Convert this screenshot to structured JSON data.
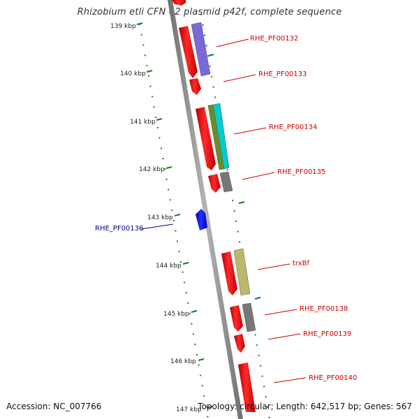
{
  "title": "Rhizobium etli CFN 42 plasmid p42f, complete sequence",
  "accession": "Accession: NC_007766",
  "stats": "Topology: circular; Length: 642,517 bp; Genes: 567",
  "colors": {
    "backbone": "#8a8a8a",
    "tick": "#1e7a1e",
    "forward_gene": "#ee0000",
    "reverse_gene": "#0000ee",
    "label_forward": "#cc0000",
    "label_reverse": "#000088"
  },
  "scale_labels": [
    "139 kbp",
    "140 kbp",
    "141 kbp",
    "142 kbp",
    "143 kbp",
    "144 kbp",
    "145 kbp",
    "146 kbp",
    "147 kbp"
  ],
  "gene_labels": [
    {
      "id": "RHE_PF00132",
      "text": "RHE_PF00132",
      "strand": "forward"
    },
    {
      "id": "RHE_PF00133",
      "text": "RHE_PF00133",
      "strand": "forward"
    },
    {
      "id": "RHE_PF00134",
      "text": "RHE_PF00134",
      "strand": "forward"
    },
    {
      "id": "RHE_PF00135",
      "text": "RHE_PF00135",
      "strand": "forward"
    },
    {
      "id": "RHE_PF00136",
      "text": "RHE_PF00136",
      "strand": "reverse"
    },
    {
      "id": "trxBf",
      "text": "trxBf",
      "strand": "forward"
    },
    {
      "id": "RHE_PF00138",
      "text": "RHE_PF00138",
      "strand": "forward"
    },
    {
      "id": "RHE_PF00139",
      "text": "RHE_PF00139",
      "strand": "forward"
    },
    {
      "id": "RHE_PF00140",
      "text": "RHE_PF00140",
      "strand": "forward"
    }
  ],
  "cog_colors": [
    "#7b68d6",
    "#6b8e23",
    "#00cccc",
    "#777777",
    "#bdb76b"
  ]
}
